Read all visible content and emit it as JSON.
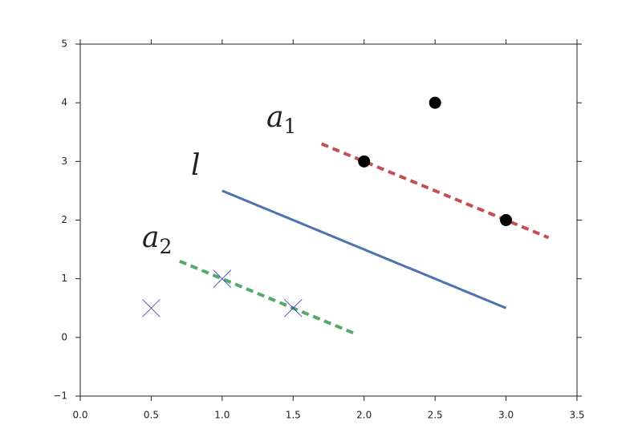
{
  "chart_data": {
    "type": "line",
    "xlim": [
      0,
      3.5
    ],
    "xticks": [
      {
        "value": 0,
        "label": "0.0"
      },
      {
        "value": 0.5,
        "label": "0.5"
      },
      {
        "value": 1,
        "label": "1.0"
      },
      {
        "value": 1.5,
        "label": "1.5"
      },
      {
        "value": 2,
        "label": "2.0"
      },
      {
        "value": 2.5,
        "label": "2.5"
      },
      {
        "value": 3,
        "label": "3.0"
      },
      {
        "value": 3.5,
        "label": "3.5"
      }
    ],
    "ylim": [
      -1,
      5
    ],
    "yticks": [
      {
        "value": -1,
        "label": "−1"
      },
      0,
      1,
      2,
      3,
      4,
      5
    ],
    "grid": false,
    "series": [
      {
        "kind": "solid",
        "color": "#4c72b0",
        "x": [
          1,
          3
        ],
        "values": [
          2.5,
          0.5
        ]
      },
      {
        "kind": "dashed",
        "color": "#c44e52",
        "x": [
          1.7,
          3.3
        ],
        "values": [
          3.3,
          1.7
        ]
      },
      {
        "kind": "dashed",
        "color": "#55a868",
        "x": [
          0.7,
          1.95
        ],
        "values": [
          1.3,
          0.05
        ]
      },
      {
        "kind": "dot",
        "color": "#000000",
        "x": [
          2,
          2.5,
          3
        ],
        "values": [
          3,
          4,
          2
        ]
      },
      {
        "kind": "cross",
        "color": "#3333cc",
        "x": [
          0.5,
          1,
          1.5
        ],
        "values": [
          0.5,
          1,
          0.5
        ]
      }
    ],
    "annotations": [
      {
        "text": "a",
        "sub": "1"
      },
      {
        "text": "l"
      },
      {
        "text": "a",
        "sub": "2"
      }
    ]
  }
}
